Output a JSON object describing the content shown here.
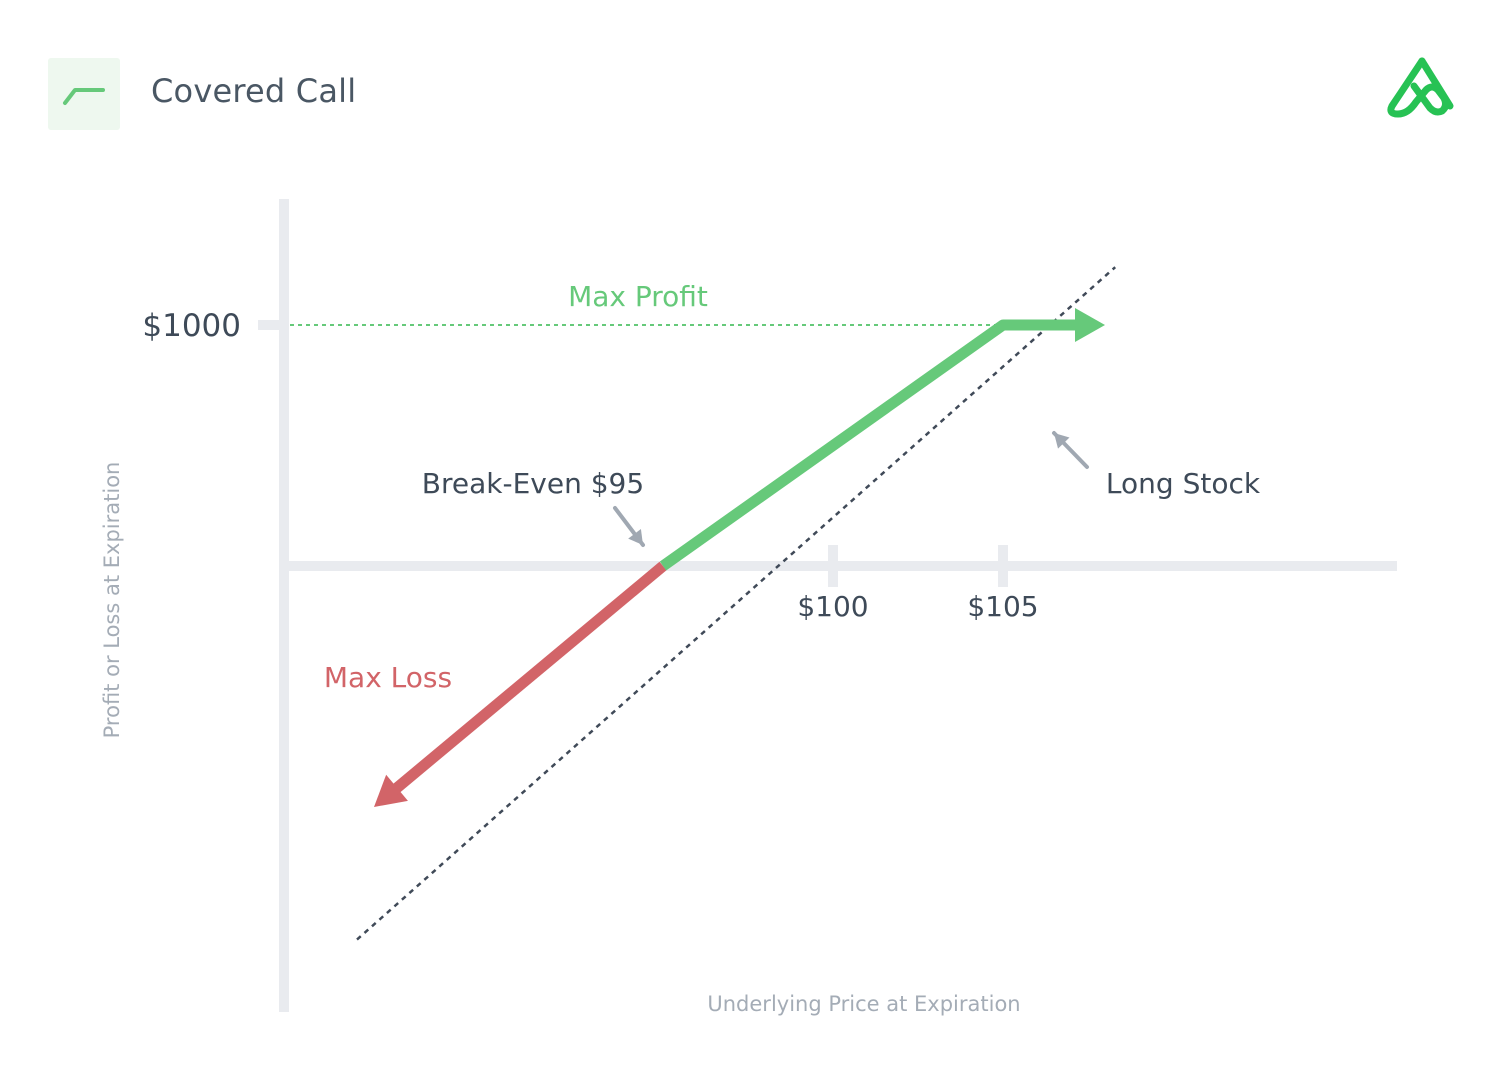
{
  "header": {
    "title": "Covered Call",
    "strategy_icon": "covered-call-payoff-icon",
    "brand_logo": "brand-logo-icon"
  },
  "colors": {
    "profit": "#66c97a",
    "loss": "#d26468",
    "text": "#3e4a58",
    "axis": "#e9ebef",
    "axis_label": "#a4acb6",
    "dotted": "#404a58",
    "pointer": "#a0a8b2"
  },
  "chart_data": {
    "type": "line",
    "title": "Covered Call",
    "xlabel": "Underlying Price at Expiration",
    "ylabel": "Profit or Loss at Expiration",
    "x_ticks": [
      {
        "value": 100,
        "label": "$100"
      },
      {
        "value": 105,
        "label": "$105"
      }
    ],
    "y_ticks": [
      {
        "value": 1000,
        "label": "$1000"
      }
    ],
    "xlim": [
      85.5,
      109.5
    ],
    "ylim": [
      -1900,
      1650
    ],
    "series": [
      {
        "role": "covered-call",
        "x": [
          86.5,
          95,
          105,
          108
        ],
        "y": [
          -1000,
          0,
          1000,
          1000
        ]
      },
      {
        "name": "Long Stock",
        "x": [
          86,
          108.3
        ],
        "y": [
          -1550,
          1240
        ]
      }
    ],
    "annotations": {
      "max_profit": "Max Profit",
      "max_loss": "Max Loss",
      "break_even": "Break-Even $95",
      "long_stock": "Long Stock"
    }
  }
}
